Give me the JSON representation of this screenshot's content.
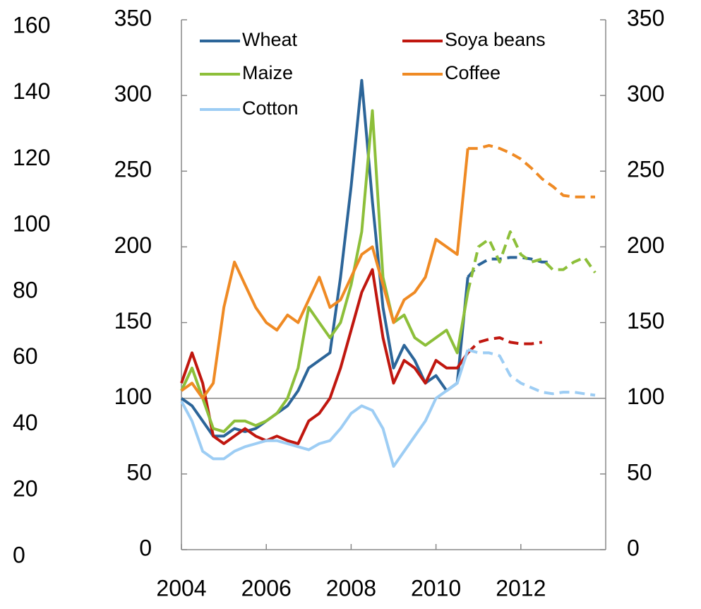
{
  "chart_data": {
    "type": "line",
    "x": [
      2004,
      2004.25,
      2004.5,
      2004.75,
      2005,
      2005.25,
      2005.5,
      2005.75,
      2006,
      2006.25,
      2006.5,
      2006.75,
      2007,
      2007.25,
      2007.5,
      2007.75,
      2008,
      2008.25,
      2008.5,
      2008.75,
      2009,
      2009.25,
      2009.5,
      2009.75,
      2010,
      2010.25,
      2010.5,
      2010.75,
      2011,
      2011.25,
      2011.5,
      2011.75,
      2012,
      2012.25,
      2012.5,
      2012.75,
      2013,
      2013.25,
      2013.5,
      2013.75
    ],
    "xlim": [
      2004,
      2014
    ],
    "xticks": [
      2004,
      2006,
      2008,
      2010,
      2012
    ],
    "ylim": [
      0,
      350
    ],
    "yticks": [
      0,
      50,
      100,
      150,
      200,
      250,
      300,
      350
    ],
    "y2lim": [
      0,
      350
    ],
    "y2ticks": [
      0,
      50,
      100,
      150,
      200,
      250,
      300,
      350
    ],
    "y3lim": [
      0,
      160
    ],
    "y3ticks": [
      0,
      20,
      40,
      60,
      80,
      100,
      120,
      140,
      160
    ],
    "reference_line": 100,
    "grid": false,
    "legend": "top-left",
    "series": [
      {
        "name": "Wheat",
        "color": "#2c6599",
        "values": [
          100,
          95,
          85,
          75,
          75,
          80,
          78,
          80,
          85,
          90,
          95,
          105,
          120,
          125,
          130,
          180,
          240,
          310,
          230,
          160,
          120,
          135,
          125,
          110,
          115,
          105,
          110,
          180,
          null,
          null,
          null,
          null,
          null,
          null,
          null,
          null,
          null,
          null,
          null,
          null
        ],
        "forecast": [
          null,
          null,
          null,
          null,
          null,
          null,
          null,
          null,
          null,
          null,
          null,
          null,
          null,
          null,
          null,
          null,
          null,
          null,
          null,
          null,
          null,
          null,
          null,
          null,
          null,
          null,
          null,
          180,
          188,
          192,
          192,
          193,
          193,
          192,
          190,
          190,
          null,
          null,
          null,
          null
        ]
      },
      {
        "name": "Soya beans",
        "color": "#c0170f",
        "values": [
          110,
          130,
          110,
          75,
          70,
          75,
          80,
          75,
          72,
          75,
          72,
          70,
          85,
          90,
          100,
          120,
          145,
          170,
          185,
          140,
          110,
          125,
          120,
          110,
          125,
          120,
          120,
          130,
          null,
          null,
          null,
          null,
          null,
          null,
          null,
          null,
          null,
          null,
          null,
          null
        ],
        "forecast": [
          null,
          null,
          null,
          null,
          null,
          null,
          null,
          null,
          null,
          null,
          null,
          null,
          null,
          null,
          null,
          null,
          null,
          null,
          null,
          null,
          null,
          null,
          null,
          null,
          null,
          null,
          null,
          130,
          137,
          139,
          140,
          137,
          136,
          136,
          137,
          null,
          null,
          null,
          null,
          null
        ]
      },
      {
        "name": "Maize",
        "color": "#8dbf3a",
        "values": [
          105,
          120,
          100,
          80,
          78,
          85,
          85,
          82,
          85,
          90,
          100,
          120,
          160,
          150,
          140,
          150,
          175,
          210,
          290,
          180,
          150,
          155,
          140,
          135,
          140,
          145,
          130,
          170,
          null,
          null,
          null,
          null,
          null,
          null,
          null,
          null,
          null,
          null,
          null,
          null
        ],
        "forecast": [
          null,
          null,
          null,
          null,
          null,
          null,
          null,
          null,
          null,
          null,
          null,
          null,
          null,
          null,
          null,
          null,
          null,
          null,
          null,
          null,
          null,
          null,
          null,
          null,
          null,
          null,
          null,
          170,
          200,
          205,
          190,
          210,
          195,
          190,
          192,
          185,
          185,
          190,
          193,
          183
        ]
      },
      {
        "name": "Coffee",
        "color": "#ef8a24",
        "values": [
          105,
          110,
          100,
          110,
          160,
          190,
          175,
          160,
          150,
          145,
          155,
          150,
          165,
          180,
          160,
          165,
          180,
          195,
          200,
          175,
          150,
          165,
          170,
          180,
          205,
          200,
          195,
          265,
          null,
          null,
          null,
          null,
          null,
          null,
          null,
          null,
          null,
          null,
          null,
          null
        ],
        "forecast": [
          null,
          null,
          null,
          null,
          null,
          null,
          null,
          null,
          null,
          null,
          null,
          null,
          null,
          null,
          null,
          null,
          null,
          null,
          null,
          null,
          null,
          null,
          null,
          null,
          null,
          null,
          null,
          265,
          265,
          267,
          265,
          262,
          258,
          252,
          245,
          240,
          234,
          233,
          233,
          233
        ]
      },
      {
        "name": "Cotton",
        "color": "#9dcdf4",
        "values": [
          98,
          85,
          65,
          60,
          60,
          65,
          68,
          70,
          72,
          72,
          70,
          68,
          66,
          70,
          72,
          80,
          90,
          95,
          92,
          80,
          55,
          65,
          75,
          85,
          100,
          105,
          110,
          132,
          null,
          null,
          null,
          null,
          null,
          null,
          null,
          null,
          null,
          null,
          null,
          null
        ],
        "forecast": [
          null,
          null,
          null,
          null,
          null,
          null,
          null,
          null,
          null,
          null,
          null,
          null,
          null,
          null,
          null,
          null,
          null,
          null,
          null,
          null,
          null,
          null,
          null,
          null,
          null,
          null,
          null,
          132,
          130,
          130,
          128,
          115,
          110,
          107,
          104,
          103,
          104,
          104,
          103,
          102
        ]
      }
    ]
  }
}
